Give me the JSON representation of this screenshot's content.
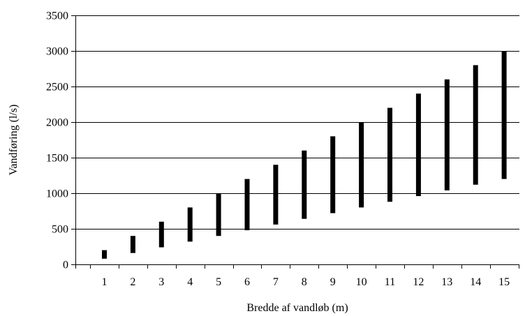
{
  "chart_data": {
    "type": "range-bar",
    "xlabel": "Bredde af vandløb (m)",
    "ylabel": "Vandføring (l/s)",
    "ylim": [
      0,
      3500
    ],
    "yticks": [
      0,
      500,
      1000,
      1500,
      2000,
      2500,
      3000,
      3500
    ],
    "categories": [
      "1",
      "2",
      "3",
      "4",
      "5",
      "6",
      "7",
      "8",
      "9",
      "10",
      "11",
      "12",
      "13",
      "14",
      "15"
    ],
    "low": [
      80,
      160,
      240,
      320,
      400,
      480,
      560,
      640,
      720,
      800,
      880,
      960,
      1040,
      1120,
      1200
    ],
    "high": [
      200,
      400,
      600,
      800,
      1000,
      1200,
      1400,
      1600,
      1800,
      2000,
      2200,
      2400,
      2600,
      2800,
      3000
    ],
    "grid": true,
    "bar_color": "#000000"
  }
}
